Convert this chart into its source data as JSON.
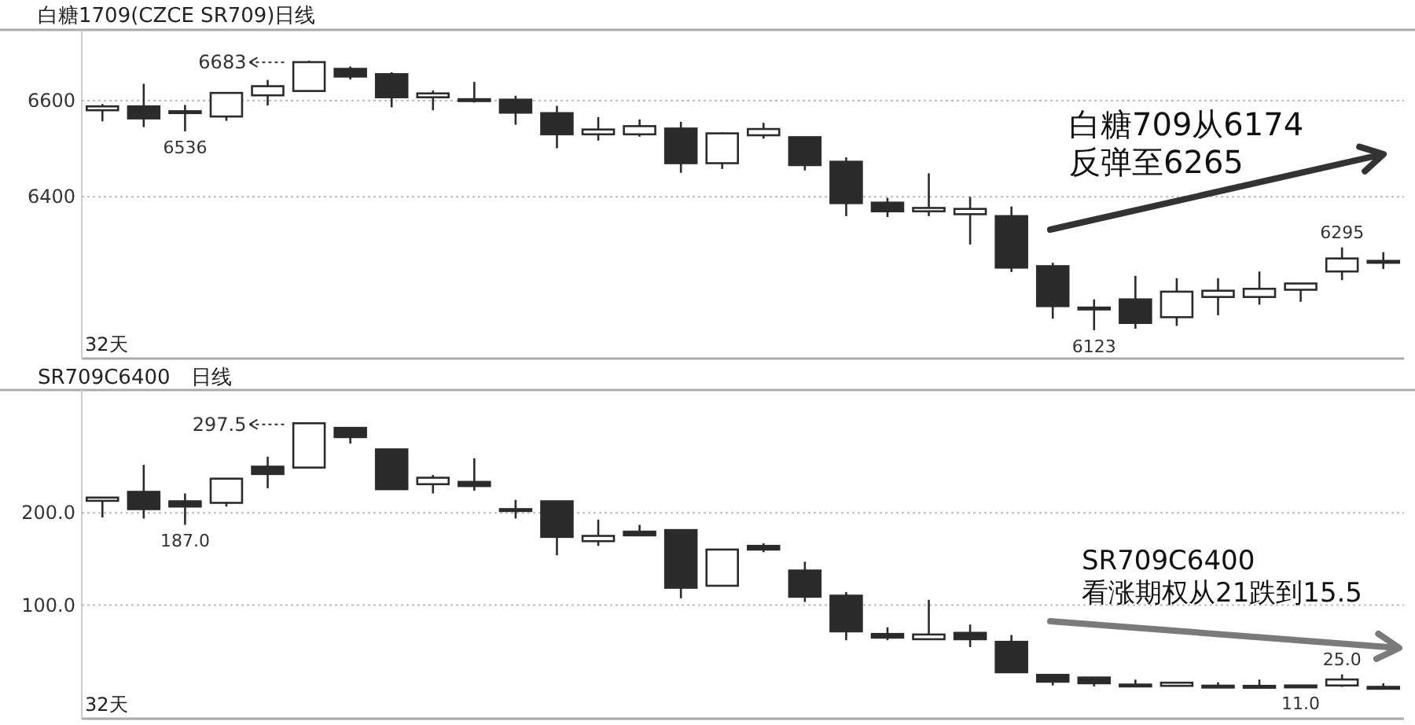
{
  "chart_data": [
    {
      "type": "candlestick",
      "title": "白糖1709(CZCE SR709)日线",
      "categories": [
        null,
        null,
        null,
        null,
        null,
        null,
        null,
        null,
        null,
        null,
        null,
        null,
        null,
        null,
        null,
        null,
        null,
        null,
        null,
        null,
        null,
        null,
        null,
        null,
        null,
        null,
        null,
        null,
        null,
        null,
        null,
        null
      ],
      "ohlc": [
        [
          6580,
          6593,
          6557,
          6588
        ],
        [
          6588,
          6635,
          6545,
          6563
        ],
        [
          6575,
          6591,
          6536,
          6578
        ],
        [
          6567,
          6617,
          6558,
          6616
        ],
        [
          6611,
          6643,
          6590,
          6630
        ],
        [
          6620,
          6683,
          6619,
          6680
        ],
        [
          6666,
          6671,
          6644,
          6650
        ],
        [
          6655,
          6659,
          6586,
          6607
        ],
        [
          6607,
          6621,
          6580,
          6615
        ],
        [
          6603,
          6639,
          6596,
          6601
        ],
        [
          6602,
          6610,
          6550,
          6575
        ],
        [
          6574,
          6589,
          6501,
          6530
        ],
        [
          6530,
          6566,
          6517,
          6540
        ],
        [
          6530,
          6561,
          6525,
          6547
        ],
        [
          6542,
          6556,
          6450,
          6470
        ],
        [
          6470,
          6534,
          6458,
          6532
        ],
        [
          6528,
          6554,
          6521,
          6541
        ],
        [
          6524,
          6525,
          6455,
          6466
        ],
        [
          6473,
          6482,
          6360,
          6387
        ],
        [
          6388,
          6398,
          6358,
          6370
        ],
        [
          6370,
          6449,
          6360,
          6377
        ],
        [
          6364,
          6400,
          6301,
          6375
        ],
        [
          6360,
          6380,
          6244,
          6253
        ],
        [
          6256,
          6263,
          6147,
          6173
        ],
        [
          6170,
          6187,
          6123,
          6169
        ],
        [
          6187,
          6236,
          6126,
          6138
        ],
        [
          6150,
          6231,
          6132,
          6203
        ],
        [
          6192,
          6231,
          6154,
          6205
        ],
        [
          6192,
          6245,
          6176,
          6209
        ],
        [
          6207,
          6221,
          6182,
          6220
        ],
        [
          6245,
          6295,
          6227,
          6272
        ],
        [
          6266,
          6285,
          6250,
          6267
        ]
      ],
      "ylim": [
        6064,
        6747
      ],
      "yticks": [
        6400,
        6600
      ],
      "grid": "y",
      "annotations": [
        {
          "text": "6536",
          "y": 6536
        },
        "6683",
        {
          "text": "6123",
          "y": 6123
        },
        {
          "text": "6295",
          "y": 6295
        },
        "32天",
        "白糖709从6174\n反弹至6265"
      ]
    },
    {
      "type": "candlestick",
      "title": "SR709C6400　日线",
      "categories": [
        null,
        null,
        null,
        null,
        null,
        null,
        null,
        null,
        null,
        null,
        null,
        null,
        null,
        null,
        null,
        null,
        null,
        null,
        null,
        null,
        null,
        null,
        null,
        null,
        null,
        null,
        null,
        null,
        null,
        null,
        null,
        null
      ],
      "ohlc": [
        [
          213,
          216.5,
          195,
          216.5
        ],
        [
          222.7,
          252,
          193.8,
          204
        ],
        [
          212.5,
          221,
          187,
          206.8
        ],
        [
          210.8,
          237.5,
          206.8,
          237
        ],
        [
          250,
          260.8,
          226.7,
          242
        ],
        [
          249,
          297.5,
          248.8,
          297
        ],
        [
          292,
          292,
          275,
          282
        ],
        [
          268.7,
          269,
          225,
          225.6
        ],
        [
          231,
          241,
          221,
          238
        ],
        [
          233.5,
          259,
          224,
          229
        ],
        [
          204,
          214,
          193.8,
          203
        ],
        [
          212.5,
          212.5,
          154,
          173.9
        ],
        [
          169.3,
          192.6,
          164.2,
          175
        ],
        [
          179.6,
          187,
          175,
          175.6
        ],
        [
          181.3,
          181.3,
          107.4,
          118.8
        ],
        [
          121,
          160.2,
          121,
          160.2
        ],
        [
          164.2,
          167,
          157.4,
          160.2
        ],
        [
          137.5,
          147,
          103.4,
          109.1
        ],
        [
          110.3,
          114.2,
          62,
          71.6
        ],
        [
          68.8,
          76,
          62,
          64.8
        ],
        [
          63.1,
          105.7,
          63,
          68.2
        ],
        [
          70,
          79,
          54.6,
          63.1
        ],
        [
          60.3,
          67.7,
          27.3,
          27.3
        ],
        [
          24.5,
          24.5,
          13,
          17.1
        ],
        [
          21.6,
          21.6,
          12,
          15.4
        ],
        [
          14,
          19.4,
          11.5,
          13.7
        ],
        [
          12.6,
          16,
          12.6,
          16
        ],
        [
          12.8,
          16.5,
          11.5,
          12.6
        ],
        [
          12.6,
          19.4,
          11.2,
          11.6
        ],
        [
          13,
          13,
          11,
          11.5
        ],
        [
          13,
          25,
          11.5,
          19.5
        ],
        [
          11.5,
          15.4,
          11.2,
          11.3
        ]
      ],
      "ylim": [
        -23,
        333
      ],
      "yticks": [
        {
          "value": 100,
          "label": "100.0"
        },
        {
          "value": 200,
          "label": "200.0"
        }
      ],
      "grid": "y",
      "annotations": [
        {
          "text": "187.0",
          "y": 187
        },
        "297.5",
        {
          "text": "11.0",
          "y": 11
        },
        {
          "text": "25.0",
          "y": 25
        },
        "32天",
        "SR709C6400\n看涨期权从21跌到15.5"
      ]
    }
  ]
}
